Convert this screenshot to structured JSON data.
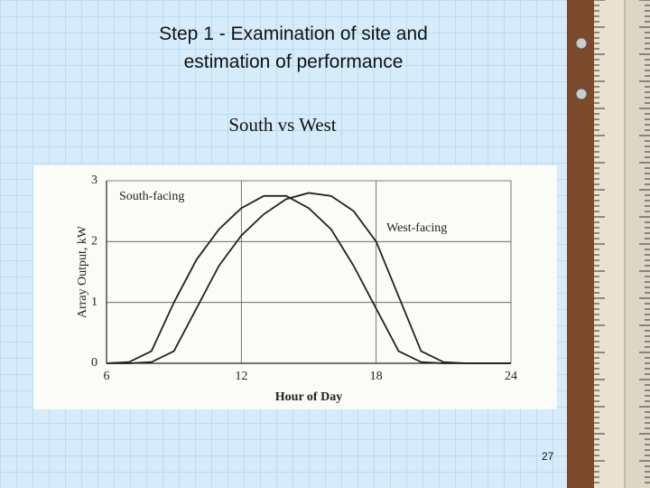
{
  "slide": {
    "title_lines": [
      "Step 1 - Examination of site and",
      "estimation of performance"
    ],
    "subtitle": "South vs West",
    "page_number": "27"
  },
  "chart_data": {
    "type": "line",
    "x_label": "Hour of Day",
    "y_label": "Array Output, kW",
    "x": [
      6,
      7,
      8,
      9,
      10,
      11,
      12,
      13,
      14,
      15,
      16,
      17,
      18,
      19,
      20,
      21,
      22,
      23,
      24
    ],
    "series": [
      {
        "name": "South-facing",
        "color": "#222222",
        "values": [
          0,
          0.02,
          0.2,
          1.0,
          1.7,
          2.2,
          2.55,
          2.75,
          2.75,
          2.55,
          2.2,
          1.6,
          0.9,
          0.2,
          0.02,
          0,
          0,
          0,
          0
        ]
      },
      {
        "name": "West-facing",
        "color": "#222222",
        "values": [
          0,
          0,
          0.02,
          0.2,
          0.9,
          1.6,
          2.1,
          2.45,
          2.7,
          2.8,
          2.75,
          2.5,
          2.0,
          1.1,
          0.2,
          0.02,
          0,
          0,
          0
        ]
      }
    ],
    "xlim": [
      6,
      24
    ],
    "xticks": [
      6,
      12,
      18,
      24
    ],
    "ylim": [
      0,
      3
    ],
    "yticks": [
      0,
      1,
      2,
      3
    ],
    "grid": true
  }
}
